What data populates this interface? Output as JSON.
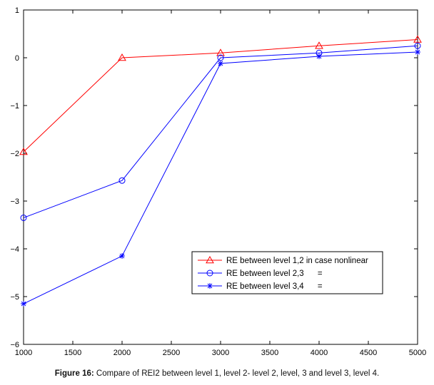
{
  "chart_data": {
    "type": "line",
    "x": [
      1000,
      2000,
      3000,
      4000,
      5000
    ],
    "series": [
      {
        "name": "RE between level 1,2 in case nonlinear",
        "values": [
          -1.97,
          0.0,
          0.1,
          0.25,
          0.38
        ],
        "color": "#ff0000",
        "marker": "triangle"
      },
      {
        "name": "RE between level 2,3      =",
        "values": [
          -3.35,
          -2.57,
          0.0,
          0.1,
          0.25
        ],
        "color": "#0000ff",
        "marker": "circle"
      },
      {
        "name": "RE between level 3,4      =",
        "values": [
          -5.15,
          -4.15,
          -0.12,
          0.03,
          0.12
        ],
        "color": "#0000ff",
        "marker": "star"
      }
    ],
    "xlim": [
      1000,
      5000
    ],
    "ylim": [
      -6,
      1
    ],
    "xticks": [
      1000,
      1500,
      2000,
      2500,
      3000,
      3500,
      4000,
      4500,
      5000
    ],
    "yticks": [
      1,
      0,
      -1,
      -2,
      -3,
      -4,
      -5,
      -6
    ],
    "grid": false,
    "legend_position": "bottom-right",
    "title": "",
    "xlabel": "",
    "ylabel": ""
  },
  "caption": {
    "label": "Figure 16:",
    "text": " Compare of REI2 between level 1, level 2- level 2, level, 3 and level 3, level 4."
  }
}
